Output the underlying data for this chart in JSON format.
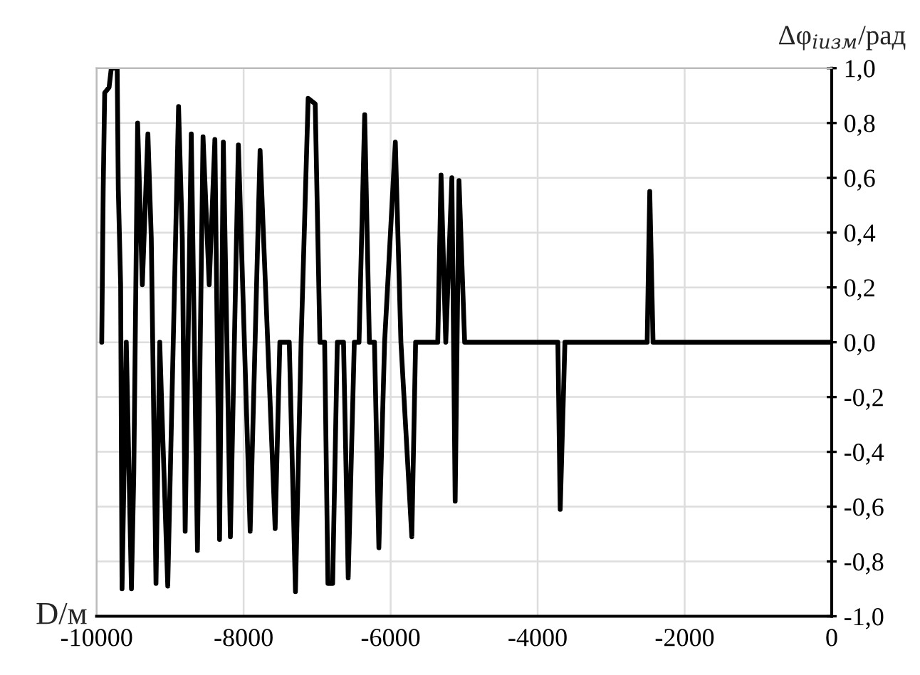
{
  "chart_data": {
    "type": "line",
    "xlabel": "D/м",
    "ylabel": "Δφ$_{iизм}$/рад",
    "xlim": [
      -10000,
      0
    ],
    "xticks": [
      -10000,
      -8000,
      -6000,
      -4000,
      -2000,
      0
    ],
    "ylim": [
      -1,
      1
    ],
    "yticks": [
      {
        "value": -1,
        "label": "-1,0"
      },
      {
        "value": -0.8,
        "label": "-0,8"
      },
      {
        "value": -0.6,
        "label": "-0,6"
      },
      {
        "value": -0.4,
        "label": "-0,4"
      },
      {
        "value": -0.2,
        "label": "-0,2"
      },
      {
        "value": 0,
        "label": "0,0"
      },
      {
        "value": 0.2,
        "label": "0,2"
      },
      {
        "value": 0.4,
        "label": "0,4"
      },
      {
        "value": 0.6,
        "label": "0,6"
      },
      {
        "value": 0.8,
        "label": "0,8"
      },
      {
        "value": 1,
        "label": "1,0"
      }
    ],
    "grid": true,
    "marker": "none",
    "line_style": "solid",
    "series": [
      {
        "color": "#000000",
        "x": [
          -9930,
          -9910,
          -9890,
          -9830,
          -9800,
          -9720,
          -9705,
          -9673,
          -9654,
          -9596,
          -9526,
          -9494,
          -9442,
          -9378,
          -9302,
          -9256,
          -9192,
          -9141,
          -9109,
          -9032,
          -8885,
          -8834,
          -8795,
          -8712,
          -8628,
          -8552,
          -8468,
          -8391,
          -8327,
          -8276,
          -8180,
          -8071,
          -7911,
          -7776,
          -7571,
          -7507,
          -7379,
          -7295,
          -7218,
          -7122,
          -7026,
          -6962,
          -6898,
          -6853,
          -6789,
          -6725,
          -6641,
          -6577,
          -6494,
          -6430,
          -6353,
          -6289,
          -6220,
          -6160,
          -6082,
          -5936,
          -5860,
          -5712,
          -5660,
          -5359,
          -5314,
          -5250,
          -5167,
          -5122,
          -5070,
          -4993,
          -3725,
          -3693,
          -3629,
          -2510,
          -2475,
          -2430,
          0
        ],
        "values": [
          0,
          0.56,
          0.91,
          0.93,
          1.0,
          1.0,
          0.56,
          0.21,
          -0.9,
          0,
          -0.9,
          -0.48,
          0.8,
          0.21,
          0.76,
          0.38,
          -0.88,
          0,
          -0.27,
          -0.89,
          0.86,
          0.38,
          -0.69,
          0.76,
          -0.76,
          0.75,
          0.21,
          0.74,
          -0.72,
          0.73,
          -0.71,
          0.72,
          -0.69,
          0.7,
          -0.68,
          0,
          0,
          -0.91,
          0,
          0.89,
          0.87,
          0,
          0,
          -0.88,
          -0.88,
          0,
          0,
          -0.86,
          0,
          0,
          0.83,
          0,
          0,
          -0.75,
          0,
          0.73,
          0,
          -0.71,
          0,
          0,
          0.61,
          0,
          0.6,
          -0.58,
          0.59,
          0,
          0,
          -0.61,
          0,
          0,
          0.55,
          0,
          0
        ]
      }
    ]
  }
}
